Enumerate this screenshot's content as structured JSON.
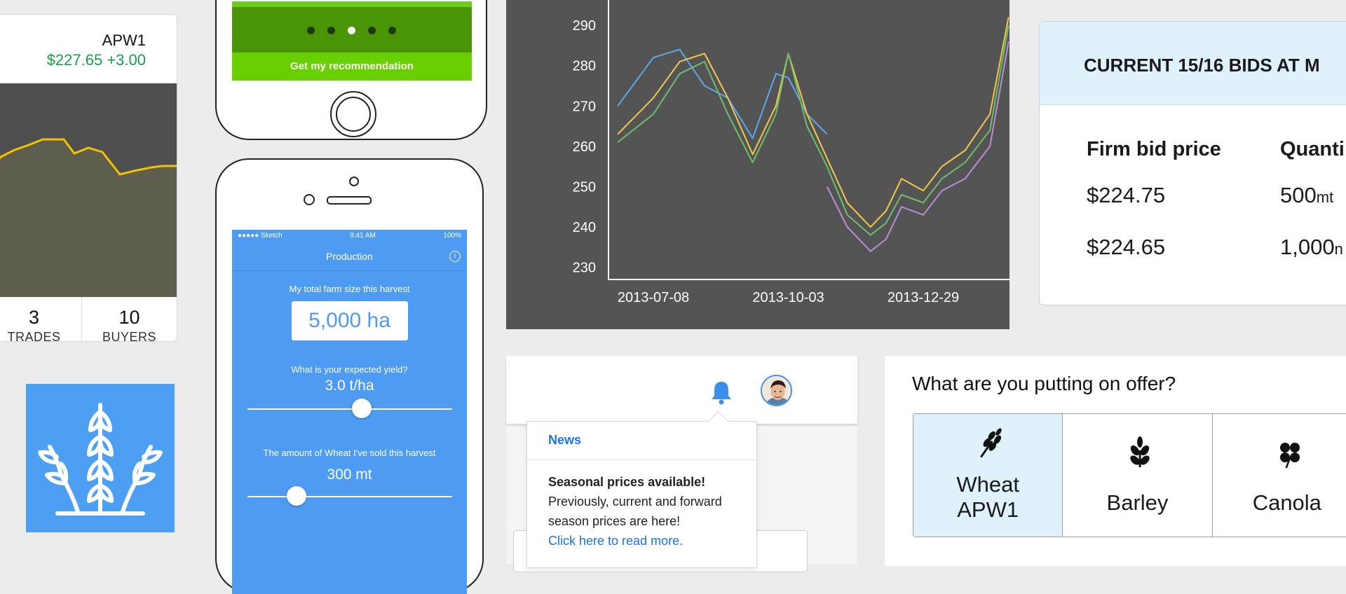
{
  "price_card": {
    "symbol": "APW1",
    "price": "$227.65 +3.00",
    "stats": [
      {
        "value": "3",
        "label": "TRADES"
      },
      {
        "value": "10",
        "label": "BUYERS"
      }
    ],
    "line_color": "#f2c400",
    "price_color": "#18a04a"
  },
  "wheat_tile": {
    "icon": "wheat-icon",
    "color": "#4c9ff2"
  },
  "phone_top": {
    "pager_count": 5,
    "pager_active": 3,
    "cta_label": "Get my recommendation"
  },
  "phone_bottom": {
    "status_left": "●●●●● Sketch",
    "status_time": "9:41 AM",
    "status_battery": "100%",
    "nav_title": "Production",
    "info_icon": "i",
    "farm_size_label": "My total farm size this harvest",
    "farm_size_value": "5,000 ha",
    "yield_label": "What is your expected yield?",
    "yield_value": "3.0 t/ha",
    "yield_slider_level": 0.56,
    "sold_label": "The amount of Wheat I've sold this harvest",
    "sold_value": "300 mt",
    "sold_slider_level": 0.24
  },
  "chart_data": {
    "type": "line",
    "x_ticks": [
      "2013-07-08",
      "2013-10-03",
      "2013-12-29"
    ],
    "ylim": [
      227,
      298
    ],
    "y_ticks": [
      230,
      240,
      250,
      260,
      270,
      280,
      290
    ],
    "grid": false,
    "x": [
      "2013-06-15",
      "2013-07-08",
      "2013-07-25",
      "2013-08-10",
      "2013-08-25",
      "2013-09-10",
      "2013-09-25",
      "2013-10-03",
      "2013-10-15",
      "2013-10-28",
      "2013-11-10",
      "2013-11-25",
      "2013-12-05",
      "2013-12-15",
      "2013-12-29",
      "2014-01-10",
      "2014-01-25",
      "2014-02-10",
      "2014-02-22"
    ],
    "series": [
      {
        "color": "#5aa9ec",
        "values": [
          270,
          282,
          284,
          275,
          272,
          262,
          278,
          277,
          268,
          263,
          null,
          null,
          null,
          null,
          null,
          null,
          null,
          null,
          null
        ]
      },
      {
        "color": "#f2c94c",
        "values": [
          263,
          272,
          281,
          283,
          272,
          258,
          270,
          283,
          268,
          257,
          246,
          240,
          244,
          252,
          249,
          255,
          259,
          268,
          292
        ]
      },
      {
        "color": "#6fbf6a",
        "values": [
          261,
          268,
          278,
          281,
          268,
          256,
          268,
          283,
          265,
          255,
          243,
          238,
          241,
          248,
          246,
          252,
          256,
          264,
          290
        ]
      },
      {
        "color": "#b98fd6",
        "values": [
          null,
          null,
          null,
          null,
          null,
          null,
          null,
          null,
          null,
          250,
          240,
          234,
          237,
          245,
          243,
          249,
          252,
          260,
          286
        ]
      }
    ],
    "background": "#545454"
  },
  "bids_card": {
    "title": "CURRENT 15/16 BIDS AT M",
    "col1_header": "Firm bid price",
    "col2_header": "Quanti",
    "rows": [
      {
        "price": "$224.75",
        "qty": "500",
        "unit": "mt"
      },
      {
        "price": "$224.65",
        "qty": "1,000",
        "unit": "n"
      }
    ],
    "header_bg": "#dff1fb"
  },
  "notifications": {
    "bell_icon": "bell-icon",
    "avatar": "user-avatar",
    "popup_title": "News",
    "popup_heading": "Seasonal prices available!",
    "popup_text": "Previously, current and forward season prices are here!",
    "popup_link": "Click here to read more.",
    "accent": "#1a73e8"
  },
  "offer_card": {
    "question": "What are you putting on offer?",
    "options": [
      {
        "line1": "Wheat",
        "line2": "APW1",
        "icon": "wheat-sprig-icon",
        "selected": true
      },
      {
        "line1": "Barley",
        "line2": "",
        "icon": "barley-icon",
        "selected": false
      },
      {
        "line1": "Canola",
        "line2": "",
        "icon": "canola-flower-icon",
        "selected": false
      }
    ]
  }
}
